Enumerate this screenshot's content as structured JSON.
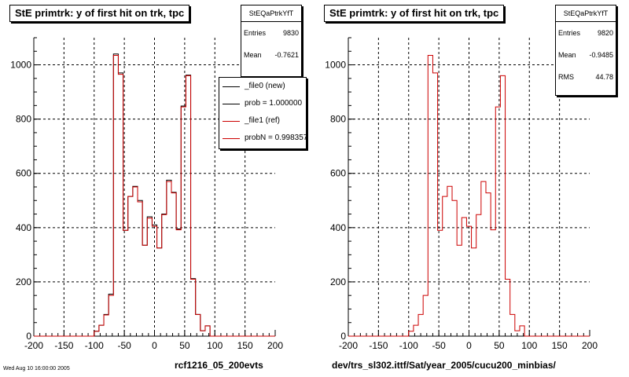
{
  "chart_data": [
    {
      "type": "histogram",
      "title": "StE primtrk: y of first hit on trk, tpc",
      "xlabel": "rcf1216_05_200evts",
      "ylabel": "",
      "xlim": [
        -200,
        200
      ],
      "ylim": [
        0,
        1100
      ],
      "x_ticks": [
        "-200",
        "-150",
        "-100",
        "-50",
        "0",
        "50",
        "100",
        "150",
        "200"
      ],
      "y_ticks": [
        "0",
        "200",
        "400",
        "600",
        "800",
        "1000"
      ],
      "grid": true,
      "bin_width": 8,
      "stats": {
        "name": "StEQaPtrkYfT",
        "rows": [
          {
            "label": "Entries",
            "value": "9830"
          },
          {
            "label": "Mean",
            "value": "-0.7621"
          }
        ]
      },
      "legend": [
        {
          "label": "_file0 (new)",
          "color": "#000000"
        },
        {
          "label": "prob = 1.000000",
          "color": "#000000"
        },
        {
          "label": "_file1 (ref)",
          "color": "#cc0000"
        },
        {
          "label": "probN = 0.998357",
          "color": "#cc0000"
        }
      ],
      "series": [
        {
          "name": "_file0 (new)",
          "color": "#000000",
          "bin_edges_start": -108,
          "values": [
            0,
            18,
            40,
            80,
            155,
            1040,
            970,
            390,
            515,
            552,
            500,
            335,
            440,
            410,
            325,
            450,
            575,
            530,
            395,
            848,
            962,
            212,
            80,
            20,
            38,
            0
          ]
        },
        {
          "name": "_file1 (ref)",
          "color": "#cc0000",
          "bin_edges_start": -108,
          "values": [
            0,
            18,
            40,
            78,
            150,
            1035,
            965,
            390,
            515,
            550,
            495,
            335,
            435,
            405,
            325,
            448,
            570,
            528,
            392,
            845,
            960,
            210,
            80,
            20,
            38,
            0
          ]
        }
      ]
    },
    {
      "type": "histogram",
      "title": "StE primtrk: y of first hit on trk, tpc",
      "xlabel": "dev/trs_sl302.ittf/Sat/year_2005/cucu200_minbias/",
      "ylabel": "",
      "xlim": [
        -200,
        200
      ],
      "ylim": [
        0,
        1100
      ],
      "x_ticks": [
        "-200",
        "-150",
        "-100",
        "-50",
        "0",
        "50",
        "100",
        "150",
        "200"
      ],
      "y_ticks": [
        "0",
        "200",
        "400",
        "600",
        "800",
        "1000"
      ],
      "grid": true,
      "bin_width": 8,
      "stats": {
        "name": "StEQaPtrkYfT",
        "rows": [
          {
            "label": "Entries",
            "value": "9820"
          },
          {
            "label": "Mean",
            "value": "-0.9485"
          },
          {
            "label": "RMS",
            "value": "44.78"
          }
        ]
      },
      "legend": [],
      "series": [
        {
          "name": "",
          "color": "#cc0000",
          "bin_edges_start": -108,
          "values": [
            0,
            18,
            40,
            80,
            150,
            1035,
            970,
            390,
            515,
            552,
            500,
            335,
            437,
            405,
            325,
            448,
            570,
            528,
            392,
            845,
            960,
            210,
            80,
            20,
            38,
            0
          ]
        }
      ]
    }
  ],
  "footer_stamp": "Wed Aug 10 16:00:00 2005"
}
